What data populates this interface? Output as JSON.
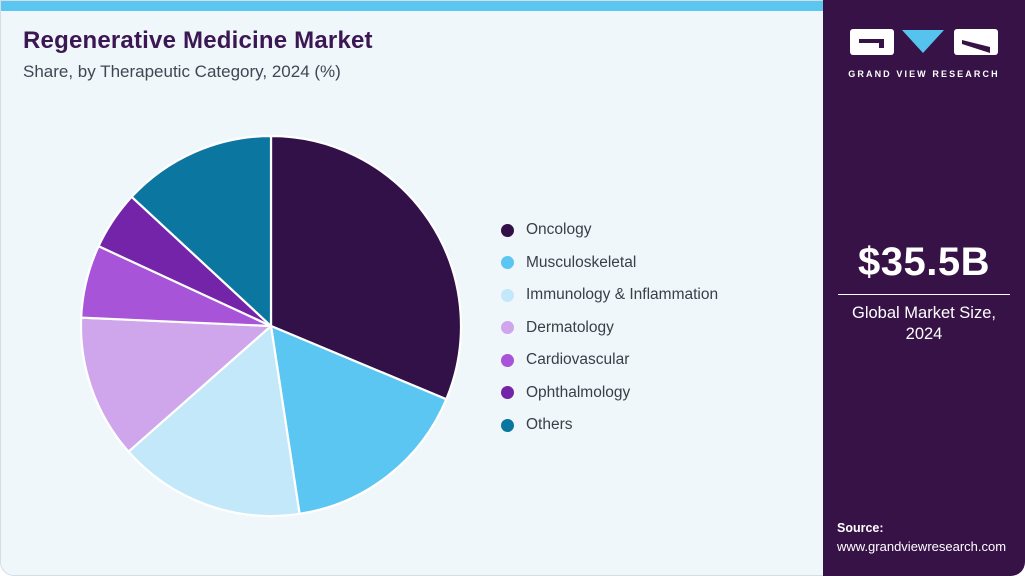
{
  "page": {
    "title": "Regenerative Medicine Market",
    "subtitle": "Share, by Therapeutic Category, 2024 (%)"
  },
  "chart_data": {
    "type": "pie",
    "title": "Regenerative Medicine Market Share, by Therapeutic Category, 2024 (%)",
    "unit": "percent",
    "start_angle_deg": 0,
    "direction": "clockwise",
    "categories": [
      "Oncology",
      "Musculoskeletal",
      "Immunology & Inflammation",
      "Dermatology",
      "Cardiovascular",
      "Ophthalmology",
      "Others"
    ],
    "values": [
      31.3,
      16.3,
      15.9,
      12.2,
      6.2,
      5.0,
      13.1
    ],
    "colors": [
      "#321149",
      "#5cc6f2",
      "#c3e8f9",
      "#cfa6ec",
      "#a854d8",
      "#7424a8",
      "#0b77a0"
    ],
    "legend_position": "right",
    "slice_separator_color": "#ffffff"
  },
  "sidebar": {
    "logo_text": "GRAND VIEW RESEARCH",
    "market_size_value": "$35.5B",
    "market_size_label": "Global Market Size, 2024",
    "source_label": "Source:",
    "source_url": "www.grandviewresearch.com"
  },
  "colors": {
    "accent_strip": "#5bc6f0",
    "sidebar_bg": "#371247",
    "card_bg": "#f0f7fb",
    "title_text": "#3b1753",
    "logo_triangle": "#56c2ee",
    "logo_glyph": "#371247"
  }
}
